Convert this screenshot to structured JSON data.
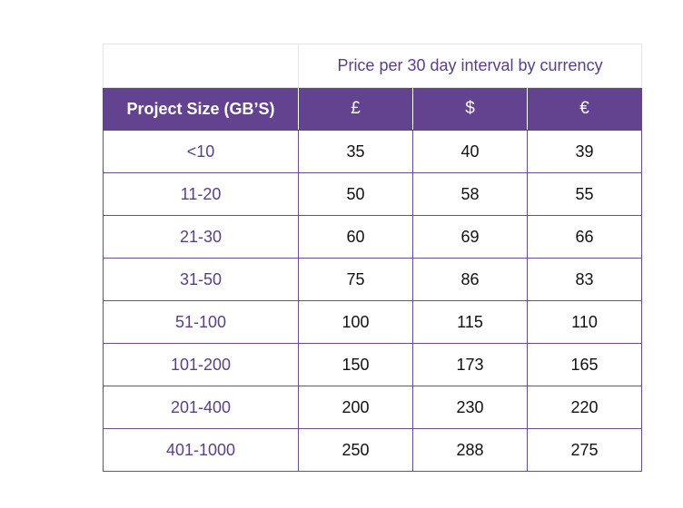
{
  "table": {
    "caption": "Price per 30 day interval by currency",
    "headers": {
      "size": "Project Size (GB’S)",
      "gbp": "£",
      "usd": "$",
      "eur": "€"
    },
    "rows": [
      {
        "size": "<10",
        "gbp": "35",
        "usd": "40",
        "eur": "39"
      },
      {
        "size": "11-20",
        "gbp": "50",
        "usd": "58",
        "eur": "55"
      },
      {
        "size": "21-30",
        "gbp": "60",
        "usd": "69",
        "eur": "66"
      },
      {
        "size": "31-50",
        "gbp": "75",
        "usd": "86",
        "eur": "83"
      },
      {
        "size": "51-100",
        "gbp": "100",
        "usd": "115",
        "eur": "110"
      },
      {
        "size": "101-200",
        "gbp": "150",
        "usd": "173",
        "eur": "165"
      },
      {
        "size": "201-400",
        "gbp": "200",
        "usd": "230",
        "eur": "220"
      },
      {
        "size": "401-1000",
        "gbp": "250",
        "usd": "288",
        "eur": "275"
      }
    ]
  },
  "colors": {
    "accent": "#63428f",
    "size_text": "#5b3e8a",
    "border": "#6a4c93"
  }
}
